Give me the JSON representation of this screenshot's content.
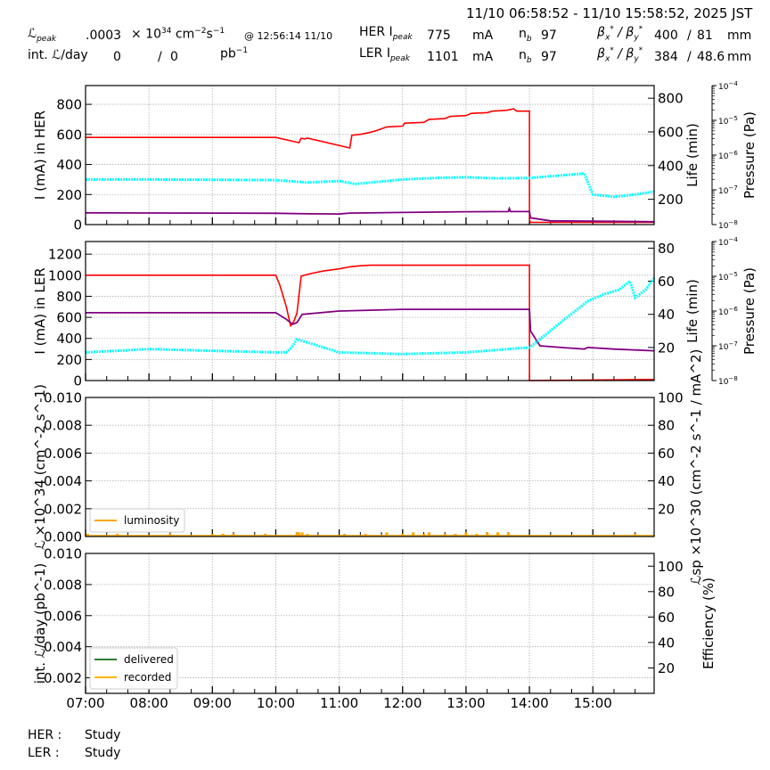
{
  "header": {
    "time_range": "11/10 06:58:52 - 11/10 15:58:52, 2025 JST",
    "lpeak_label": "ℒ",
    "lpeak_sub": "peak",
    "lpeak_value": ".0003",
    "lpeak_unit_prefix": "× 10",
    "lpeak_unit_exp": "34",
    "lpeak_unit_cm": " cm",
    "lpeak_unit_cm_exp": "−2",
    "lpeak_unit_s": "s",
    "lpeak_unit_s_exp": "−1",
    "lpeak_time": "@ 12:56:14 11/10",
    "intl_label": "int. ℒ/day",
    "intl_delivered": "0",
    "intl_sep": "/",
    "intl_recorded": "0",
    "intl_unit": "pb",
    "intl_unit_exp": "−1",
    "her": {
      "label": "HER I",
      "label_sub": "peak",
      "ipeak": "775",
      "ipeak_unit": "mA",
      "nb_label": "n",
      "nb_sub": "b",
      "nb": "97",
      "beta_label": "βx* / βy*",
      "beta_x": "400",
      "beta_sep": "/",
      "beta_y": "81",
      "beta_unit": "mm"
    },
    "ler": {
      "label": "LER I",
      "label_sub": "peak",
      "ipeak": "1101",
      "ipeak_unit": "mA",
      "nb_label": "n",
      "nb_sub": "b",
      "nb": "97",
      "beta_label": "βx* / βy*",
      "beta_x": "384",
      "beta_sep": "/",
      "beta_y": "48.6",
      "beta_unit": "mm"
    }
  },
  "status": {
    "her_label": "HER :",
    "her_value": "Study",
    "ler_label": "LER :",
    "ler_value": "Study"
  },
  "colors": {
    "current": "#ff0000",
    "lifetime": "#800080",
    "pressure": "#00ffff",
    "luminosity": "#ffa500",
    "delivered": "#2e7d32",
    "recorded": "#ffb300",
    "grid": "#b0b0b0"
  },
  "chart_data": [
    {
      "id": "her",
      "type": "line",
      "title": "",
      "xlabel": "",
      "ylabel": "I (mA) in HER",
      "ylabel_right": "Life (min)",
      "ylabel_right2": "Pressure (Pa)",
      "x_ticks": [
        "07:00",
        "08:00",
        "09:00",
        "10:00",
        "11:00",
        "12:00",
        "13:00",
        "14:00",
        "15:00"
      ],
      "y_ticks": [
        0,
        200,
        400,
        600,
        800
      ],
      "ylim": [
        0,
        925
      ],
      "y_right_ticks": [
        200,
        400,
        600,
        800
      ],
      "y_right_lim": [
        50,
        875
      ],
      "y_right2_ticks": [
        "10^-8",
        "10^-7",
        "10^-6",
        "10^-5",
        "10^-4"
      ],
      "grid": true,
      "series": [
        {
          "name": "HER current (mA)",
          "color": "#ff0000",
          "x": [
            "07:00",
            "10:00",
            "10:22",
            "10:24",
            "10:27",
            "10:30",
            "11:10",
            "11:12",
            "11:20",
            "11:30",
            "11:35",
            "11:45",
            "12:00",
            "12:02",
            "12:20",
            "12:25",
            "12:40",
            "12:45",
            "13:00",
            "13:05",
            "13:20",
            "13:25",
            "13:38",
            "13:45",
            "13:48",
            "14:00",
            "14:00",
            "14:01",
            "15:58"
          ],
          "y": [
            580,
            580,
            545,
            575,
            570,
            575,
            510,
            595,
            600,
            615,
            625,
            650,
            655,
            675,
            680,
            700,
            705,
            720,
            725,
            740,
            745,
            755,
            760,
            770,
            755,
            755,
            30,
            15,
            15
          ]
        },
        {
          "name": "HER lifetime (min)",
          "color": "#800080",
          "x": [
            "07:00",
            "08:00",
            "09:00",
            "10:00",
            "10:30",
            "11:00",
            "11:10",
            "12:00",
            "13:00",
            "13:40",
            "13:41",
            "13:42",
            "14:00",
            "14:01",
            "14:20",
            "15:00",
            "15:58"
          ],
          "y": [
            120,
            119,
            118,
            117,
            114,
            113,
            118,
            122,
            126,
            127,
            145,
            127,
            127,
            90,
            72,
            70,
            67
          ]
        },
        {
          "name": "HER pressure (cyan, axis Life-scaled)",
          "color": "#00ffff",
          "x": [
            "07:00",
            "08:00",
            "09:00",
            "10:00",
            "10:30",
            "11:00",
            "11:15",
            "12:00",
            "12:30",
            "13:00",
            "13:30",
            "14:00",
            "14:52",
            "15:00",
            "15:20",
            "15:40",
            "15:58"
          ],
          "y": [
            300,
            300,
            298,
            296,
            280,
            290,
            270,
            300,
            310,
            315,
            308,
            310,
            340,
            200,
            185,
            200,
            220
          ]
        }
      ]
    },
    {
      "id": "ler",
      "type": "line",
      "title": "",
      "xlabel": "",
      "ylabel": "I (mA) in LER",
      "ylabel_right": "Life (min)",
      "ylabel_right2": "Pressure (Pa)",
      "x_ticks": [
        "07:00",
        "08:00",
        "09:00",
        "10:00",
        "11:00",
        "12:00",
        "13:00",
        "14:00",
        "15:00"
      ],
      "y_ticks": [
        0,
        200,
        400,
        600,
        800,
        1000,
        1200
      ],
      "ylim": [
        0,
        1320
      ],
      "y_right_ticks": [
        20,
        40,
        60,
        80
      ],
      "y_right_lim": [
        0,
        84
      ],
      "y_right2_ticks": [
        "10^-8",
        "10^-7",
        "10^-6",
        "10^-5",
        "10^-4"
      ],
      "grid": true,
      "series": [
        {
          "name": "LER current (mA)",
          "color": "#ff0000",
          "x": [
            "07:00",
            "10:00",
            "10:04",
            "10:10",
            "10:14",
            "10:17",
            "10:20",
            "10:24",
            "10:27",
            "10:35",
            "10:45",
            "11:00",
            "11:10",
            "11:20",
            "11:30",
            "12:00",
            "13:00",
            "13:50",
            "14:00",
            "14:00",
            "15:00",
            "15:58"
          ],
          "y": [
            1000,
            1000,
            900,
            700,
            520,
            560,
            640,
            990,
            1000,
            1020,
            1040,
            1060,
            1080,
            1090,
            1095,
            1095,
            1095,
            1095,
            1095,
            0,
            5,
            10
          ]
        },
        {
          "name": "LER lifetime (min)",
          "color": "#800080",
          "x": [
            "07:00",
            "10:00",
            "10:10",
            "10:16",
            "10:20",
            "10:25",
            "11:00",
            "12:00",
            "13:00",
            "14:00",
            "14:01",
            "14:10",
            "14:30",
            "14:52",
            "14:55",
            "15:20",
            "15:58"
          ],
          "y": [
            41,
            41,
            37,
            34,
            35,
            40,
            42,
            43,
            43,
            43,
            30,
            21,
            20,
            19,
            20,
            19,
            18
          ]
        },
        {
          "name": "LER pressure (cyan, axis Life-scaled)",
          "color": "#00ffff",
          "x": [
            "07:00",
            "08:00",
            "09:00",
            "10:00",
            "10:10",
            "10:15",
            "10:20",
            "11:00",
            "12:00",
            "13:00",
            "14:00",
            "14:55",
            "15:10",
            "15:25",
            "15:35",
            "15:40",
            "15:50",
            "15:58"
          ],
          "y": [
            17,
            19,
            18,
            17,
            17,
            20,
            25,
            17,
            16,
            17,
            20,
            48,
            52,
            55,
            60,
            50,
            55,
            62
          ]
        }
      ]
    },
    {
      "id": "luminosity",
      "type": "line",
      "title": "",
      "xlabel": "",
      "ylabel": "ℒ ×10^34 (cm^-2 s^-1)",
      "ylabel_right": "ℒsp ×10^30 (cm^-2 s^-1 / mA^2)",
      "x_ticks": [
        "07:00",
        "08:00",
        "09:00",
        "10:00",
        "11:00",
        "12:00",
        "13:00",
        "14:00",
        "15:00"
      ],
      "y_ticks": [
        "0.000",
        "0.002",
        "0.004",
        "0.006",
        "0.008",
        "0.010"
      ],
      "ylim": [
        0,
        0.01
      ],
      "y_right_ticks": [
        20,
        40,
        60,
        80,
        100
      ],
      "y_right_lim": [
        0,
        100
      ],
      "grid": true,
      "legend": {
        "position": "lower left",
        "entries": [
          "luminosity"
        ]
      },
      "series": [
        {
          "name": "luminosity",
          "color": "#ffa500",
          "x": [
            "07:00",
            "07:02",
            "07:30",
            "08:20",
            "09:00",
            "09:10",
            "09:20",
            "09:50",
            "10:20",
            "10:22",
            "10:25",
            "10:30",
            "11:05",
            "11:25",
            "11:45",
            "12:00",
            "12:10",
            "12:20",
            "12:25",
            "12:40",
            "12:50",
            "13:00",
            "13:10",
            "13:20",
            "13:30",
            "13:40",
            "14:00",
            "15:40",
            "15:58"
          ],
          "y": [
            0,
            0.0002,
            0.0002,
            0.0002,
            0.0002,
            0.0002,
            0.0002,
            0.0002,
            0.0003,
            0.0003,
            0.0003,
            0.0002,
            0.0002,
            0.0002,
            0.0003,
            0.0002,
            0.0003,
            0.0002,
            0.0003,
            0.0002,
            0.0002,
            0.0003,
            0.0002,
            0.0003,
            0.0003,
            0.0003,
            0.0,
            0.0002,
            0
          ]
        }
      ]
    },
    {
      "id": "integrated",
      "type": "line",
      "title": "",
      "xlabel": "",
      "ylabel": "int. ℒ/day (pb^-1)",
      "ylabel_right": "Efficiency (%)",
      "x_ticks": [
        "07:00",
        "08:00",
        "09:00",
        "10:00",
        "11:00",
        "12:00",
        "13:00",
        "14:00",
        "15:00"
      ],
      "y_ticks": [
        "0.002",
        "0.004",
        "0.006",
        "0.008",
        "0.010"
      ],
      "ylim": [
        0.001,
        0.01
      ],
      "y_right_ticks": [
        20,
        40,
        60,
        80,
        100
      ],
      "y_right_lim": [
        0,
        110
      ],
      "grid": true,
      "legend": {
        "position": "lower left",
        "entries": [
          "delivered",
          "recorded"
        ]
      },
      "series": [
        {
          "name": "delivered",
          "color": "#2e7d32",
          "x": [],
          "y": []
        },
        {
          "name": "recorded",
          "color": "#ffb300",
          "x": [],
          "y": []
        }
      ]
    }
  ]
}
